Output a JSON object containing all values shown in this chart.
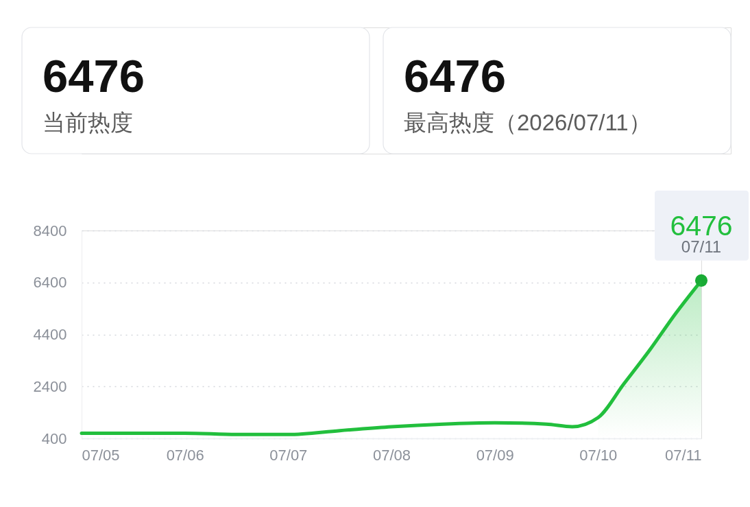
{
  "chart_data": [
    {
      "type": "other",
      "categories": [
        "当前热度",
        "最高热度（2026/07/11）"
      ],
      "values": [
        6476,
        6476
      ],
      "data_labels": true
    },
    {
      "type": "line",
      "x": [
        "2026-07-05T00:00",
        "2026-07-05T12:00",
        "2026-07-06T00:00",
        "2026-07-06T12:00",
        "2026-07-07T00:00",
        "2026-07-07T12:00",
        "2026-07-08T00:00",
        "2026-07-08T12:00",
        "2026-07-09T00:00",
        "2026-07-09T12:00",
        "2026-07-09T18:00",
        "2026-07-10T00:00",
        "2026-07-10T06:00",
        "2026-07-10T12:00",
        "2026-07-10T18:00",
        "2026-07-11T00:00"
      ],
      "series": [
        {
          "type": "line",
          "color": "#22bf3d",
          "values": [
            600,
            600,
            600,
            550,
            550,
            700,
            850,
            950,
            1000,
            950,
            850,
            1200,
            2500,
            3800,
            5200,
            6476
          ]
        },
        {
          "type": "scatter",
          "color": "#19ab35",
          "marker": "circle",
          "x": [
            "2026-07-11T00:00"
          ],
          "values": [
            6476
          ]
        },
        {
          "type": "area",
          "color": "#22bf3d",
          "x": [
            "2026-07-10T00:00",
            "2026-07-10T06:00",
            "2026-07-10T12:00",
            "2026-07-10T18:00",
            "2026-07-11T00:00"
          ],
          "values": [
            1200,
            2500,
            3800,
            5200,
            6476
          ]
        }
      ],
      "xlim": [
        "2026-07-05T00:00",
        "2026-07-11T00:00"
      ],
      "xticks": [
        {
          "value": "2026-07-05",
          "label": "07/05"
        },
        {
          "value": "2026-07-06",
          "label": "07/06"
        },
        {
          "value": "2026-07-07",
          "label": "07/07"
        },
        {
          "value": "2026-07-08",
          "label": "07/08"
        },
        {
          "value": "2026-07-09",
          "label": "07/09"
        },
        {
          "value": "2026-07-10",
          "label": "07/10"
        },
        {
          "value": "2026-07-11",
          "label": "07/11"
        }
      ],
      "ylim": [
        400,
        8400
      ],
      "yticks": [
        400,
        2400,
        4400,
        6400,
        8400
      ],
      "grid": "y",
      "line_style": "solid",
      "annotations": [
        {
          "text": "6476",
          "x": "2026-07-11T00:00",
          "y": 6476
        },
        {
          "text": "07/11",
          "x": "2026-07-11T00:00",
          "y": 6476
        }
      ]
    }
  ]
}
